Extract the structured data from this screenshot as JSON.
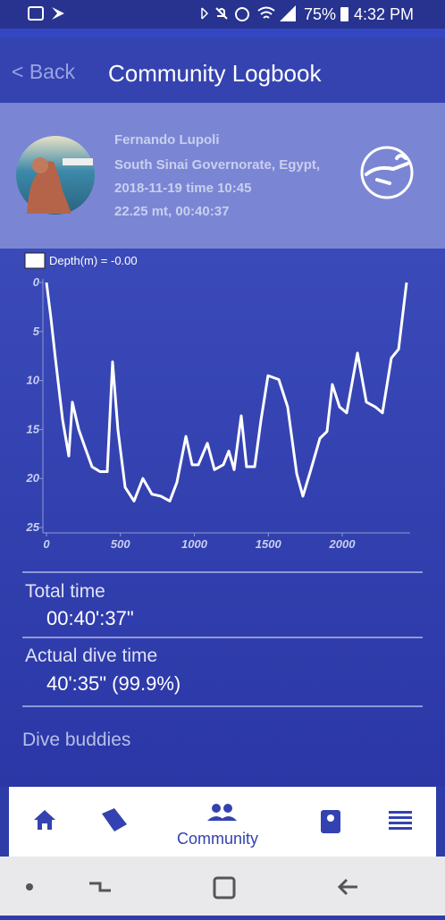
{
  "status_bar": {
    "battery": "75%",
    "time": "4:32 PM"
  },
  "header": {
    "back": "< Back",
    "title": "Community Logbook"
  },
  "profile": {
    "name": "Fernando Lupoli",
    "location": "South Sinai Governorate, Egypt,",
    "date": "2018-11-19 time 10:45",
    "dive": "22.25 mt, 00:40:37"
  },
  "chart_data": {
    "type": "line",
    "x": [
      0,
      30,
      60,
      109,
      151,
      175,
      218,
      260,
      308,
      362,
      411,
      447,
      483,
      532,
      592,
      652,
      713,
      773,
      834,
      882,
      943,
      985,
      1027,
      1088,
      1136,
      1196,
      1233,
      1269,
      1317,
      1353,
      1408,
      1450,
      1498,
      1571,
      1631,
      1692,
      1734,
      1788,
      1849,
      1897,
      1933,
      1982,
      2030,
      2103,
      2163,
      2224,
      2272,
      2332,
      2381,
      2435
    ],
    "series": [
      {
        "name": "Depth(m) = -0.00",
        "color": "#ffffff",
        "values": [
          0,
          3.6,
          7.7,
          14,
          17.7,
          12.2,
          15,
          16.8,
          18.8,
          19.3,
          19.3,
          8.1,
          15,
          20.9,
          22.3,
          20,
          21.6,
          21.8,
          22.3,
          20.4,
          15.7,
          18.6,
          18.6,
          16.4,
          19.1,
          18.6,
          17.2,
          19.1,
          13.6,
          18.8,
          18.8,
          14.1,
          9.5,
          9.9,
          12.7,
          19.5,
          21.8,
          19.1,
          15.9,
          15.2,
          10.4,
          12.7,
          13.3,
          7.2,
          12.2,
          12.7,
          13.3,
          7.7,
          6.8,
          0
        ]
      }
    ],
    "xlim": [
      0,
      2435
    ],
    "xticks": [
      0,
      500,
      1000,
      1500,
      2000
    ],
    "ylim": [
      0,
      25
    ],
    "yticks": [
      0,
      5,
      10,
      15,
      20,
      25
    ],
    "y_inverted": true
  },
  "stats": [
    {
      "label": "Total time",
      "value": "00:40':37\""
    },
    {
      "label": "Actual dive time",
      "value": "40':35\" (99.9%)"
    },
    {
      "label": "Dive buddies"
    }
  ],
  "nav": {
    "active_label": "Community"
  }
}
